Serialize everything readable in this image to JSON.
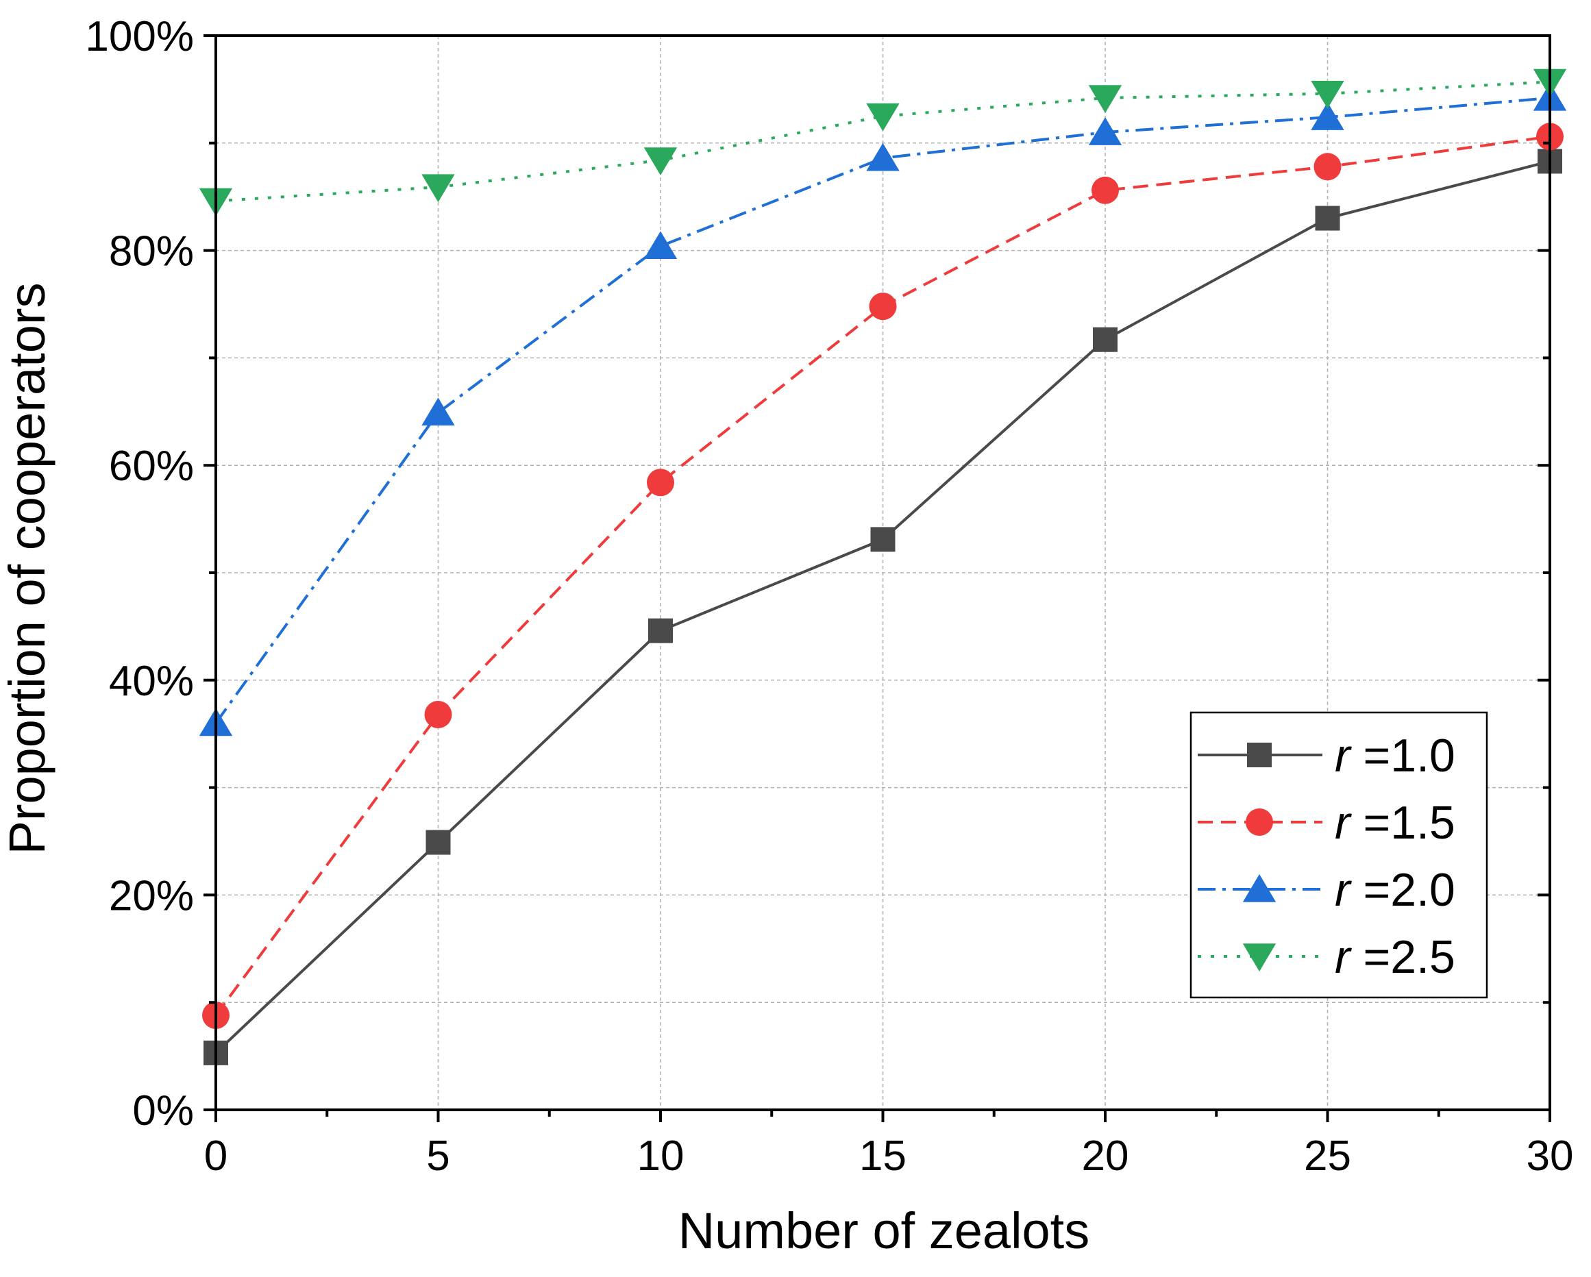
{
  "chart_data": {
    "type": "line",
    "xlabel": "Number of zealots",
    "ylabel": "Proportion of cooperators",
    "x": [
      0,
      5,
      10,
      15,
      20,
      25,
      30
    ],
    "xlim": [
      0,
      30
    ],
    "ylim": [
      0,
      100
    ],
    "x_ticks": [
      0,
      5,
      10,
      15,
      20,
      25,
      30
    ],
    "y_ticks": [
      0,
      20,
      40,
      60,
      80,
      100
    ],
    "x_tick_labels": [
      "0",
      "5",
      "10",
      "15",
      "20",
      "25",
      "30"
    ],
    "y_tick_labels": [
      "0%",
      "20%",
      "40%",
      "60%",
      "80%",
      "100%"
    ],
    "grid": true,
    "legend_position": "bottom-right",
    "series": [
      {
        "name": "r =1.0",
        "var": "r",
        "value_label": "=1.0",
        "color": "#4a4a4a",
        "marker": "square",
        "linestyle": "solid",
        "values": [
          5.3,
          24.9,
          44.6,
          53.1,
          71.7,
          83.0,
          88.3
        ]
      },
      {
        "name": "r =1.5",
        "var": "r",
        "value_label": "=1.5",
        "color": "#ef3b3b",
        "marker": "circle",
        "linestyle": "dashed",
        "values": [
          8.8,
          36.8,
          58.4,
          74.8,
          85.6,
          87.8,
          90.6
        ]
      },
      {
        "name": "r =2.0",
        "var": "r",
        "value_label": "=2.0",
        "color": "#1f6fd6",
        "marker": "triangle-up",
        "linestyle": "dashdot",
        "values": [
          36.0,
          64.9,
          80.4,
          88.6,
          91.0,
          92.4,
          94.2
        ]
      },
      {
        "name": "r =2.5",
        "var": "r",
        "value_label": "=2.5",
        "color": "#2aa85c",
        "marker": "triangle-down",
        "linestyle": "dotted",
        "values": [
          84.6,
          85.9,
          88.4,
          92.5,
          94.2,
          94.6,
          95.7
        ]
      }
    ]
  }
}
